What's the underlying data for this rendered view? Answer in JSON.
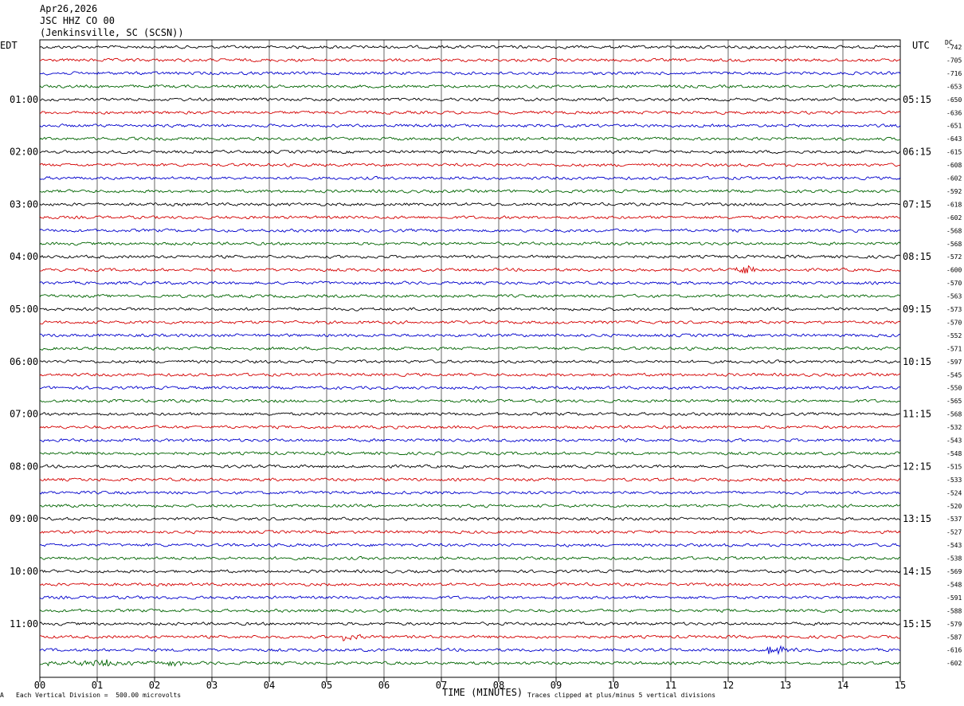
{
  "header": {
    "date": "Apr26,2026",
    "station": "JSC HHZ CO 00",
    "location": "(Jenkinsville, SC (SCSN))"
  },
  "left_tz": "EDT",
  "right_tz": "UTC",
  "dc_label": "DC",
  "footer": {
    "scale": "Each Vertical Division =  500.00 microvolts",
    "clip": "Traces clipped at plus/minus 5 vertical divisions",
    "mark": "A"
  },
  "colors": {
    "c0": "#000000",
    "c1": "#d40000",
    "c2": "#0000cc",
    "c3": "#006400",
    "grid": "#000000"
  },
  "chart_data": {
    "type": "line",
    "title": "",
    "xlabel": "TIME (MINUTES)",
    "xticks": [
      "00",
      "01",
      "02",
      "03",
      "04",
      "05",
      "06",
      "07",
      "08",
      "09",
      "10",
      "11",
      "12",
      "13",
      "14",
      "15"
    ],
    "xlim": [
      0,
      15
    ],
    "rows_per_hour": 4,
    "left_hour_labels": [
      "01:00",
      "02:00",
      "03:00",
      "04:00",
      "05:00",
      "06:00",
      "07:00",
      "08:00",
      "09:00",
      "10:00",
      "11:00"
    ],
    "right_hour_labels": [
      "05:15",
      "06:15",
      "07:15",
      "08:15",
      "09:15",
      "10:15",
      "11:15",
      "12:15",
      "13:15",
      "14:15",
      "15:15"
    ],
    "first_labeled_row": 4,
    "dc_offsets": [
      -742,
      -705,
      -716,
      -653,
      -650,
      -636,
      -651,
      -643,
      -615,
      -608,
      -602,
      -592,
      -618,
      -602,
      -568,
      -568,
      -572,
      -600,
      -570,
      -563,
      -573,
      -570,
      -552,
      -571,
      -597,
      -545,
      -550,
      -565,
      -568,
      -532,
      -543,
      -548,
      -515,
      -533,
      -524,
      -520,
      -537,
      -527,
      -543,
      -538,
      -569,
      -548,
      -591,
      -588,
      -579,
      -587,
      -616,
      -602
    ],
    "events": [
      {
        "row": 17,
        "minute": 12.2,
        "amp": 9
      },
      {
        "row": 46,
        "minute": 12.7,
        "amp": 8
      },
      {
        "row": 45,
        "minute": 5.3,
        "amp": 5
      },
      {
        "row": 47,
        "minute": 0.8,
        "amp": 8
      }
    ]
  }
}
